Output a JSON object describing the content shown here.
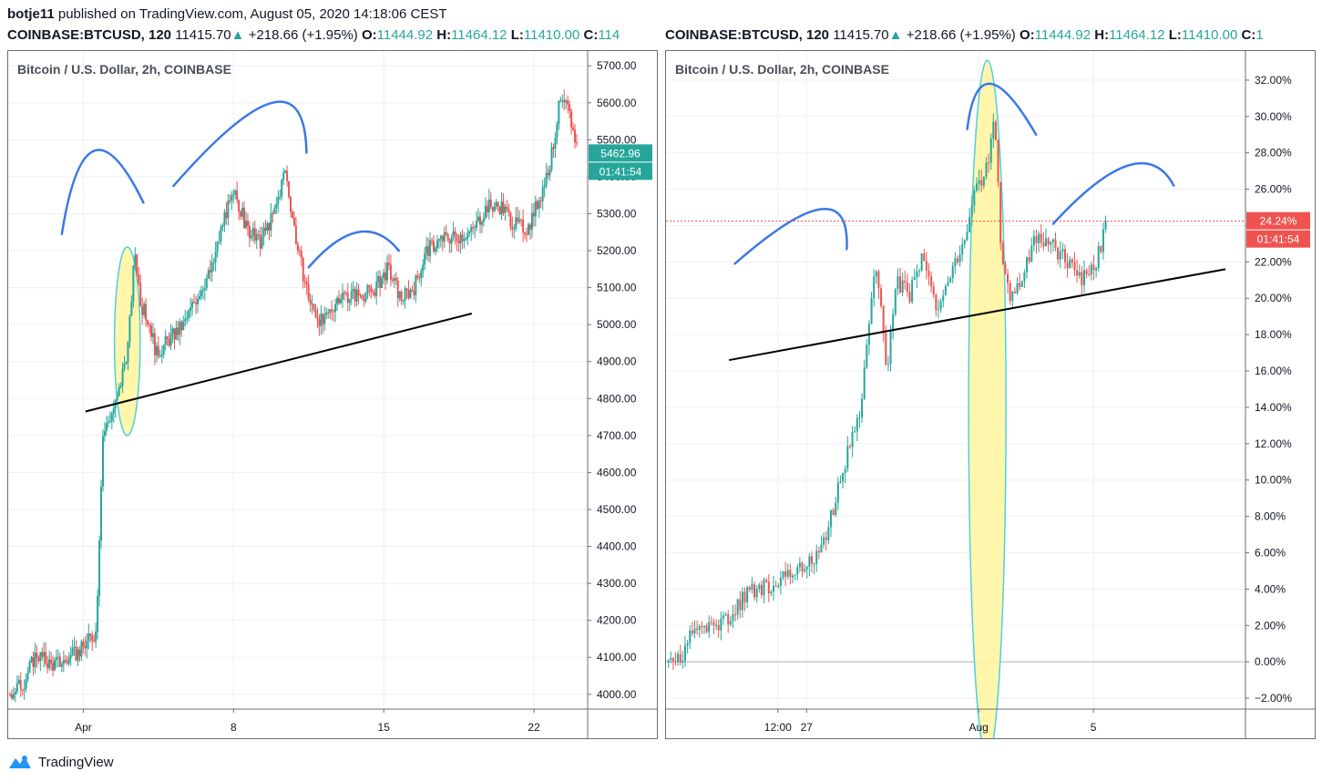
{
  "header": {
    "author": "botje11",
    "published_text": "published on TradingView.com, August 05, 2020 14:18:06 CEST"
  },
  "quotes": [
    {
      "symbol": "COINBASE:BTCUSD, 120",
      "last": "11415.70",
      "arrow": "▲",
      "change": "+218.66 (+1.95%)",
      "o_label": "O:",
      "o": "11444.92",
      "h_label": "H:",
      "h": "11464.12",
      "l_label": "L:",
      "l": "11410.00",
      "c_label": "C:",
      "c": "114"
    },
    {
      "symbol": "COINBASE:BTCUSD, 120",
      "last": "11415.70",
      "arrow": "▲",
      "change": "+218.66 (+1.95%)",
      "o_label": "O:",
      "o": "11444.92",
      "h_label": "H:",
      "h": "11464.12",
      "l_label": "L:",
      "l": "11410.00",
      "c_label": "C:",
      "c": "1"
    }
  ],
  "footer": {
    "brand": "TradingView"
  },
  "colors": {
    "up": "#26a69a",
    "down": "#ef5350",
    "annotation_curve": "#3b78e7",
    "highlight_fill": "#fff59d",
    "highlight_stroke": "#4dd0e1",
    "trendline": "#000000",
    "price_label_left": "#26a69a",
    "price_label_right": "#ef5350"
  },
  "chart_data": [
    {
      "type": "candlestick",
      "title": "Bitcoin / U.S. Dollar, 2h, COINBASE",
      "y_ticks": [
        "5700.00",
        "5600.00",
        "5500.00",
        "5400.00",
        "5300.00",
        "5200.00",
        "5100.00",
        "5000.00",
        "4900.00",
        "4800.00",
        "4700.00",
        "4600.00",
        "4500.00",
        "4400.00",
        "4300.00",
        "4200.00",
        "4100.00",
        "4000.00"
      ],
      "ylim": [
        3960,
        5740
      ],
      "x_ticks": [
        "Apr",
        "8",
        "15",
        "22"
      ],
      "x_tick_positions_days": [
        1,
        8,
        15,
        22
      ],
      "xlim_days": [
        -2.5,
        24.5
      ],
      "price_label": "5462.96",
      "price_value": 5462.96,
      "countdown": "01:41:54",
      "price_keypoints": [
        [
          -2.5,
          4000
        ],
        [
          -1.8,
          4030
        ],
        [
          -1.2,
          4110
        ],
        [
          -0.5,
          4080
        ],
        [
          0.2,
          4090
        ],
        [
          0.9,
          4120
        ],
        [
          1.6,
          4170
        ],
        [
          1.9,
          4700
        ],
        [
          2.6,
          4800
        ],
        [
          3.1,
          4950
        ],
        [
          3.4,
          5200
        ],
        [
          3.7,
          5050
        ],
        [
          4.1,
          5000
        ],
        [
          4.4,
          4920
        ],
        [
          5.0,
          4960
        ],
        [
          5.7,
          5000
        ],
        [
          6.4,
          5090
        ],
        [
          7.0,
          5150
        ],
        [
          7.6,
          5300
        ],
        [
          8.1,
          5350
        ],
        [
          8.6,
          5260
        ],
        [
          9.2,
          5220
        ],
        [
          9.9,
          5300
        ],
        [
          10.4,
          5420
        ],
        [
          11.0,
          5200
        ],
        [
          11.6,
          5050
        ],
        [
          12.2,
          5000
        ],
        [
          12.9,
          5080
        ],
        [
          13.7,
          5080
        ],
        [
          14.5,
          5090
        ],
        [
          15.2,
          5150
        ],
        [
          15.8,
          5070
        ],
        [
          16.4,
          5100
        ],
        [
          17.0,
          5200
        ],
        [
          17.7,
          5230
        ],
        [
          18.4,
          5240
        ],
        [
          19.1,
          5250
        ],
        [
          19.8,
          5320
        ],
        [
          20.5,
          5320
        ],
        [
          21.1,
          5270
        ],
        [
          21.7,
          5260
        ],
        [
          22.3,
          5350
        ],
        [
          22.8,
          5450
        ],
        [
          23.2,
          5600
        ],
        [
          23.6,
          5580
        ],
        [
          24.0,
          5480
        ]
      ],
      "trendline": [
        [
          1.1,
          4765
        ],
        [
          19.1,
          5030
        ]
      ],
      "highlight": {
        "center": [
          3.05,
          4955
        ],
        "rx_days": 0.6,
        "ry_price": 255
      },
      "arcs": [
        {
          "points": [
            [
              0.0,
              5245
            ],
            [
              1.5,
              5470
            ],
            [
              3.8,
              5330
            ]
          ]
        },
        {
          "points": [
            [
              5.2,
              5375
            ],
            [
              9.8,
              5600
            ],
            [
              11.4,
              5465
            ]
          ]
        },
        {
          "points": [
            [
              11.5,
              5155
            ],
            [
              13.8,
              5250
            ],
            [
              15.7,
              5200
            ]
          ]
        }
      ]
    },
    {
      "type": "candlestick_percent",
      "title": "Bitcoin / U.S. Dollar, 2h, COINBASE",
      "y_ticks": [
        "32.00%",
        "30.00%",
        "28.00%",
        "26.00%",
        "24.00%",
        "22.00%",
        "20.00%",
        "18.00%",
        "16.00%",
        "14.00%",
        "12.00%",
        "10.00%",
        "8.00%",
        "6.00%",
        "4.00%",
        "2.00%",
        "0.00%",
        "−2.00%"
      ],
      "ylim": [
        -2.6,
        33.6
      ],
      "x_ticks": [
        "12:00",
        "27",
        "Aug",
        "5"
      ],
      "x_tick_positions_days": [
        -6.0,
        -5.0,
        1.0,
        5.0
      ],
      "xlim_days": [
        -9.9,
        10.3
      ],
      "price_label": "24.24%",
      "price_value": 24.24,
      "countdown": "01:41:54",
      "price_keypoints": [
        [
          -9.9,
          0.0
        ],
        [
          -9.4,
          0.2
        ],
        [
          -8.9,
          1.8
        ],
        [
          -8.3,
          2.0
        ],
        [
          -7.7,
          2.3
        ],
        [
          -7.1,
          3.8
        ],
        [
          -6.3,
          4.2
        ],
        [
          -5.6,
          4.8
        ],
        [
          -4.8,
          5.5
        ],
        [
          -4.3,
          7.2
        ],
        [
          -3.8,
          10.0
        ],
        [
          -3.4,
          12.8
        ],
        [
          -3.1,
          14.0
        ],
        [
          -2.6,
          22.4
        ],
        [
          -2.2,
          16.0
        ],
        [
          -1.9,
          21.0
        ],
        [
          -1.4,
          20.2
        ],
        [
          -0.9,
          22.5
        ],
        [
          -0.4,
          19.0
        ],
        [
          0.1,
          21.6
        ],
        [
          0.5,
          23.0
        ],
        [
          0.9,
          26.0
        ],
        [
          1.3,
          27.2
        ],
        [
          1.55,
          30.0
        ],
        [
          1.8,
          22.2
        ],
        [
          2.1,
          20.2
        ],
        [
          2.5,
          21.0
        ],
        [
          3.0,
          23.4
        ],
        [
          3.6,
          22.8
        ],
        [
          4.1,
          22.0
        ],
        [
          4.6,
          21.0
        ],
        [
          5.1,
          22.0
        ],
        [
          5.5,
          24.24
        ]
      ],
      "trendline": [
        [
          -7.7,
          16.6
        ],
        [
          9.6,
          21.6
        ]
      ],
      "highlight": {
        "center": [
          1.3,
          13.9
        ],
        "rx_days": 0.65,
        "ry_price": 19.2
      },
      "arcs": [
        {
          "points": [
            [
              -7.5,
              21.9
            ],
            [
              -4.5,
              24.9
            ],
            [
              -3.6,
              22.7
            ]
          ]
        },
        {
          "points": [
            [
              0.6,
              29.3
            ],
            [
              1.4,
              31.8
            ],
            [
              3.0,
              29.0
            ]
          ]
        },
        {
          "points": [
            [
              3.6,
              24.1
            ],
            [
              6.2,
              27.3
            ],
            [
              7.8,
              26.2
            ]
          ]
        }
      ]
    }
  ]
}
